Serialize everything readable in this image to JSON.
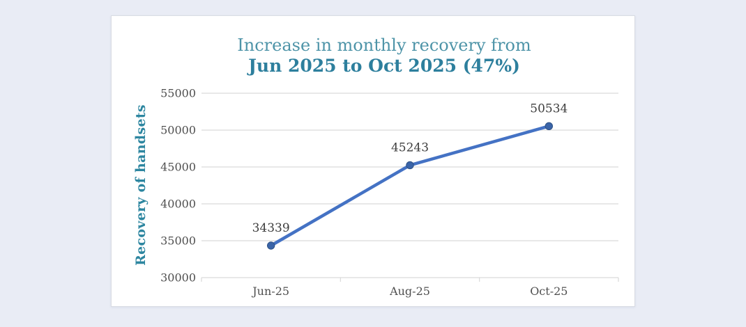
{
  "window": {
    "background": "#e9ecf5",
    "card_background": "#ffffff",
    "card_border": "#d9dce3"
  },
  "chart_data": {
    "type": "line",
    "title": "Increase in monthly recovery from",
    "subtitle": "Jun 2025 to Oct 2025 (47%)",
    "ylabel": "Recovery of handsets",
    "xlabel": "",
    "categories": [
      "Jun-25",
      "Aug-25",
      "Oct-25"
    ],
    "values": [
      34339,
      45243,
      50534
    ],
    "increase_percent_shown_in_title": "47%",
    "ylim": [
      30000,
      55000
    ],
    "yticks": [
      30000,
      35000,
      40000,
      45000,
      50000,
      55000
    ],
    "grid": true,
    "legend": "none",
    "data_labels_visible": true,
    "colors": {
      "line": "#4472c4",
      "marker_fill": "#3a64a8",
      "marker_stroke": "#2e5285",
      "title": "#4e94a8",
      "subtitle": "#2d7f9d",
      "ylabel": "#2d86a0",
      "tick_label": "#4f4f4f",
      "data_label": "#3d3d3d",
      "gridline": "#d9d9d9",
      "page_background": "#e9ecf5"
    }
  }
}
